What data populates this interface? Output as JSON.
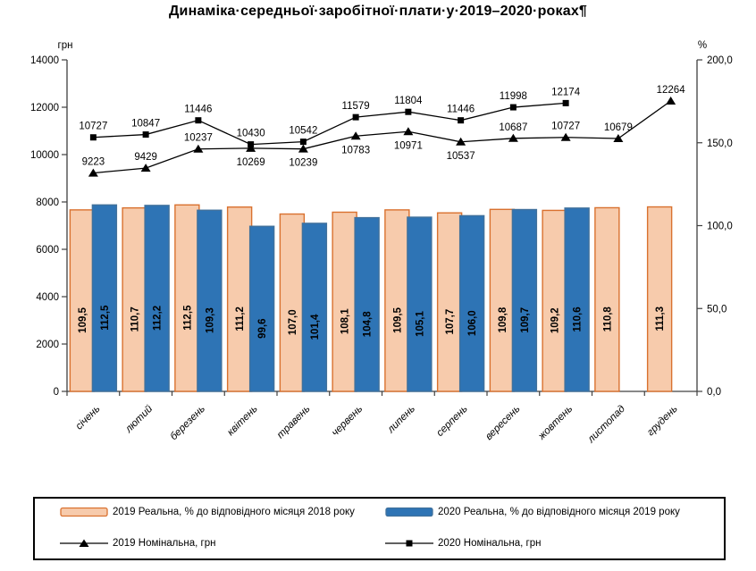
{
  "page": {
    "title": "Динаміка·середньої·заробітної·плати·у·2019–2020·роках¶"
  },
  "chart_data": {
    "type": "combo-bar-line",
    "title": "Динаміка середньої заробітної плати у 2019–2020 роках",
    "categories": [
      "січень",
      "лютий",
      "березень",
      "квітень",
      "травень",
      "червень",
      "липень",
      "серпень",
      "вересень",
      "жовтень",
      "листопад",
      "грудень"
    ],
    "left_axis": {
      "label": "грн",
      "min": 0,
      "max": 14000,
      "tick_step": 2000,
      "tick_labels": [
        "0",
        "2000",
        "4000",
        "6000",
        "8000",
        "10000",
        "12000",
        "14000"
      ]
    },
    "right_axis": {
      "label": "%",
      "min": 0,
      "max": 200,
      "tick_step": 50,
      "tick_labels": [
        "0,0",
        "50,0",
        "100,0",
        "150,0",
        "200,0"
      ]
    },
    "grid": false,
    "legend_position": "bottom-box",
    "series": [
      {
        "name": "2019 Реальна, % до відповідного місяця 2018 року",
        "type": "bar",
        "axis": "right",
        "fill": "#F7CBAC",
        "stroke": "#D9712F",
        "values": [
          109.5,
          110.7,
          112.5,
          111.2,
          107.0,
          108.1,
          109.5,
          107.7,
          109.8,
          109.2,
          110.8,
          111.3
        ],
        "labels": [
          "109,5",
          "110,7",
          "112,5",
          "111,2",
          "107,0",
          "108,1",
          "109,5",
          "107,7",
          "109,8",
          "109,2",
          "110,8",
          "111,3"
        ]
      },
      {
        "name": "2020 Реальна, % до відповідного місяця 2019 року",
        "type": "bar",
        "axis": "right",
        "fill": "#2E74B5",
        "stroke": "#41719C",
        "values": [
          112.5,
          112.2,
          109.3,
          99.6,
          101.4,
          104.8,
          105.1,
          106.0,
          109.7,
          110.6,
          null,
          null
        ],
        "labels": [
          "112,5",
          "112,2",
          "109,3",
          "99,6",
          "101,4",
          "104,8",
          "105,1",
          "106,0",
          "109,7",
          "110,6",
          null,
          null
        ]
      },
      {
        "name": "2019 Номінальна, грн",
        "type": "line",
        "axis": "left",
        "marker": "triangle",
        "color": "#000000",
        "values": [
          9223,
          9429,
          10237,
          10269,
          10239,
          10783,
          10971,
          10537,
          10687,
          10727,
          10679,
          12264
        ],
        "labels": [
          "9223",
          "9429",
          "10237",
          "10269",
          "10239",
          "10783",
          "10971",
          "10537",
          "10687",
          "10727",
          "10679",
          "12264"
        ],
        "label_positions": [
          "above",
          "above",
          "above",
          "below",
          "below",
          "below",
          "below",
          "below",
          "above",
          "above",
          "above",
          "above"
        ]
      },
      {
        "name": "2020 Номінальна, грн",
        "type": "line",
        "axis": "left",
        "marker": "square",
        "color": "#000000",
        "values": [
          10727,
          10847,
          11446,
          10430,
          10542,
          11579,
          11804,
          11446,
          11998,
          12174,
          null,
          null
        ],
        "labels": [
          "10727",
          "10847",
          "11446",
          "10430",
          "10542",
          "11579",
          "11804",
          "11446",
          "11998",
          "12174",
          null,
          null
        ],
        "label_positions": [
          "above",
          "above",
          "above",
          "above",
          "above",
          "above",
          "above",
          "above",
          "above",
          "above",
          null,
          null
        ]
      }
    ]
  }
}
